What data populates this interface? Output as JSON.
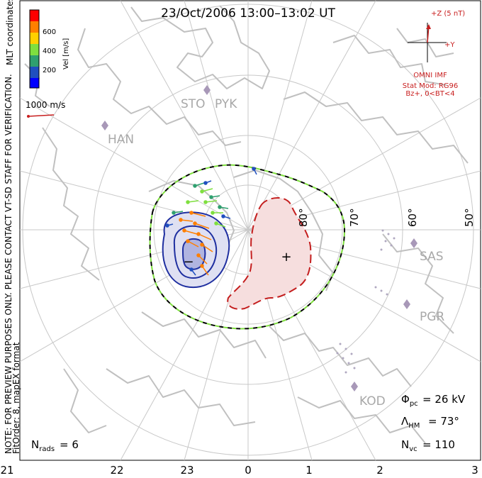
{
  "title": "23/Oct/2006 13:00–13:02 UT",
  "side_note_1": "NOTE: FOR PREVIEW PURPOSES ONLY. PLEASE CONTACT VT-SD STAFF FOR VERIFICATION.",
  "side_note_2": "FitOrder: 8, mapEX format",
  "coord_label": "MLT coordinates",
  "colorbar": {
    "label": "Vel [m/s]",
    "ticks": [
      "600",
      "400",
      "200"
    ],
    "colors": [
      "#ff0000",
      "#ff7f00",
      "#ffd000",
      "#7fdf3f",
      "#2fa06f",
      "#1f4fbf",
      "#0000ff"
    ]
  },
  "vector_scale": "1000 m/s",
  "imf": {
    "z_label": "+Z (5 nT)",
    "y_label": "+Y",
    "source": "OMNI IMF",
    "model_line1": "Stat Mod: RG96",
    "model_line2": "Bz+, 0<BT<4"
  },
  "stations": [
    "STO",
    "PYK",
    "HAN",
    "SAS",
    "PGR",
    "KOD"
  ],
  "latitude_labels": [
    "80°",
    "70°",
    "60°",
    "50°"
  ],
  "mlt_labels": [
    "21",
    "22",
    "23",
    "0",
    "1",
    "2",
    "3"
  ],
  "stats": {
    "phi_pc": "= 26 kV",
    "lambda_hm": "= 73°",
    "n_vc": "= 110",
    "n_rads": "= 6"
  },
  "markers": {
    "min": "−",
    "max": "+"
  },
  "colors": {
    "grid": "#c8c8c8",
    "coast": "#c0c0c0",
    "negative_cell": "#1f2fa0",
    "negative_fill": "#dfe0f2",
    "positive_cell": "#c41e1e",
    "positive_fill": "#f6dede",
    "boundary_dash1": "#000000",
    "boundary_dash2": "#7fdf3f",
    "station": "#a898b8",
    "imf": "#c81e1e"
  }
}
